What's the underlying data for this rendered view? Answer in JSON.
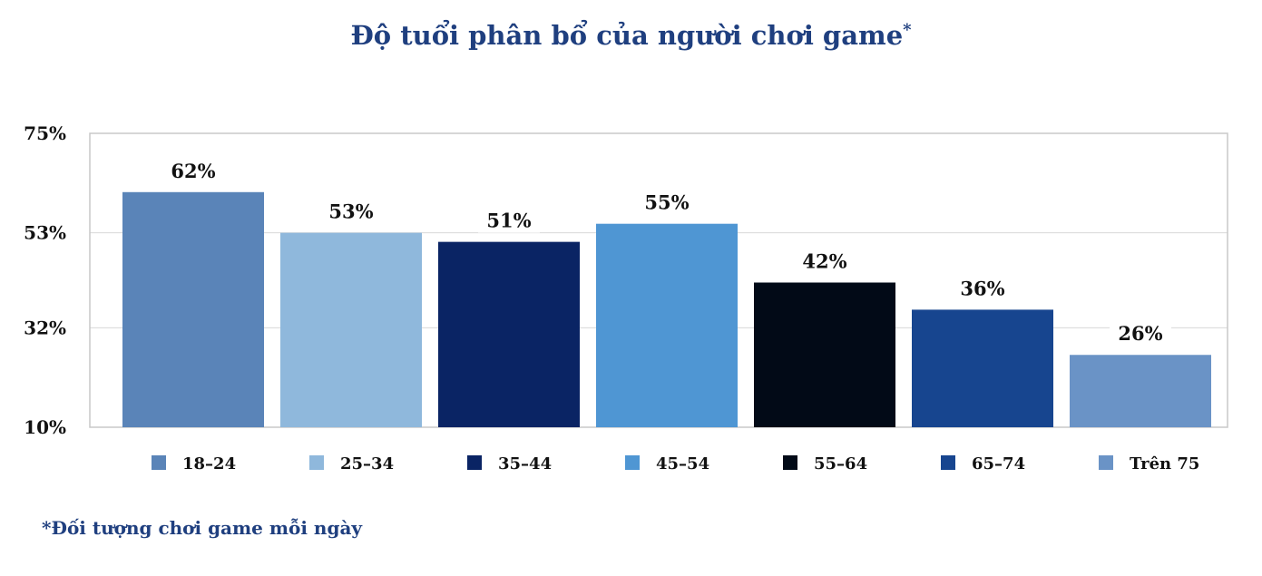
{
  "title": "Độ tuổi phân bổ của người chơi game",
  "title_marker": "*",
  "footnote": "*Đối tượng chơi game mỗi ngày",
  "chart_data": {
    "type": "bar",
    "categories": [
      "18–24",
      "25–34",
      "35–44",
      "45–54",
      "55–64",
      "65–74",
      "Trên 75"
    ],
    "values": [
      62,
      53,
      51,
      55,
      42,
      36,
      26
    ],
    "value_labels": [
      "62%",
      "53%",
      "51%",
      "55%",
      "42%",
      "36%",
      "26%"
    ],
    "colors": [
      "#5a84b8",
      "#8fb8dc",
      "#0a2464",
      "#4f96d3",
      "#020a17",
      "#17458f",
      "#6a93c6"
    ],
    "y_ticks": [
      {
        "value": 10,
        "label": "10%"
      },
      {
        "value": 32,
        "label": "32%"
      },
      {
        "value": 53,
        "label": "53%"
      },
      {
        "value": 75,
        "label": "75%"
      }
    ],
    "ylim": [
      10,
      75
    ],
    "grid": true,
    "legend": "bottom"
  }
}
